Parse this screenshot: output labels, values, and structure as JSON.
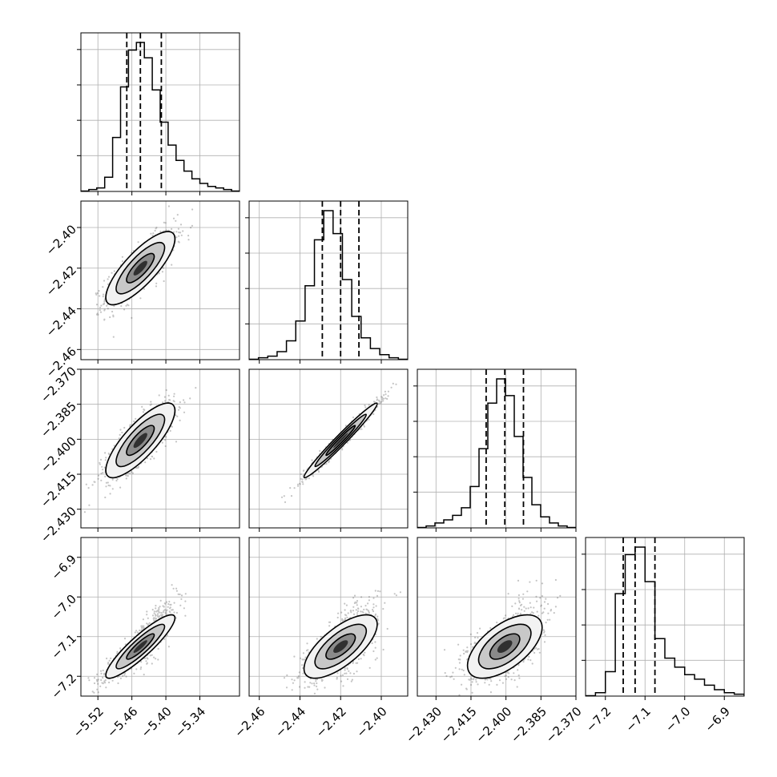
{
  "chart_data": {
    "type": "corner",
    "grid": true,
    "parameters": [
      {
        "range": [
          -5.55,
          -5.27
        ],
        "ticks": [
          -5.52,
          -5.46,
          -5.4,
          -5.34
        ],
        "tick_labels": [
          "−5.52",
          "−5.46",
          "−5.40",
          "−5.34"
        ],
        "quantiles": [
          -5.469,
          -5.445,
          -5.408
        ],
        "histogram": [
          0,
          1,
          2,
          9,
          35,
          68,
          92,
          97,
          87,
          66,
          45,
          30,
          20,
          13,
          8,
          5,
          3,
          2,
          1,
          0
        ]
      },
      {
        "range": [
          -2.465,
          -2.387
        ],
        "ticks": [
          -2.46,
          -2.44,
          -2.42,
          -2.4
        ],
        "tick_labels": [
          "−2.46",
          "−2.44",
          "−2.42",
          "−2.40"
        ],
        "quantiles": [
          -2.429,
          -2.42,
          -2.411
        ],
        "histogram": [
          0,
          1,
          2,
          5,
          12,
          25,
          48,
          78,
          97,
          82,
          52,
          28,
          14,
          7,
          3,
          1,
          0
        ]
      },
      {
        "range": [
          -2.438,
          -2.37
        ],
        "ticks": [
          -2.43,
          -2.415,
          -2.4,
          -2.385,
          -2.37
        ],
        "tick_labels": [
          "−2.430",
          "−2.415",
          "−2.400",
          "−2.385",
          "−2.370"
        ],
        "quantiles": [
          -2.4085,
          -2.4005,
          -2.3925
        ],
        "histogram": [
          0,
          1,
          3,
          5,
          8,
          13,
          27,
          52,
          82,
          98,
          87,
          60,
          33,
          15,
          7,
          3,
          1,
          0
        ]
      },
      {
        "range": [
          -7.25,
          -6.85
        ],
        "ticks": [
          -7.2,
          -7.1,
          -7.0,
          -6.9
        ],
        "tick_labels": [
          "−7.2",
          "−7.1",
          "−7.0",
          "−6.9"
        ],
        "quantiles": [
          -7.155,
          -7.125,
          -7.075
        ],
        "histogram": [
          0,
          2,
          16,
          68,
          94,
          99,
          76,
          38,
          25,
          19,
          14,
          11,
          7,
          4,
          2,
          1
        ]
      }
    ],
    "correlations": [
      [
        1,
        0.8,
        0.8,
        0.9
      ],
      [
        0.8,
        1,
        0.98,
        0.7
      ],
      [
        0.8,
        0.98,
        1,
        0.6
      ],
      [
        0.9,
        0.7,
        0.6,
        1
      ]
    ]
  }
}
